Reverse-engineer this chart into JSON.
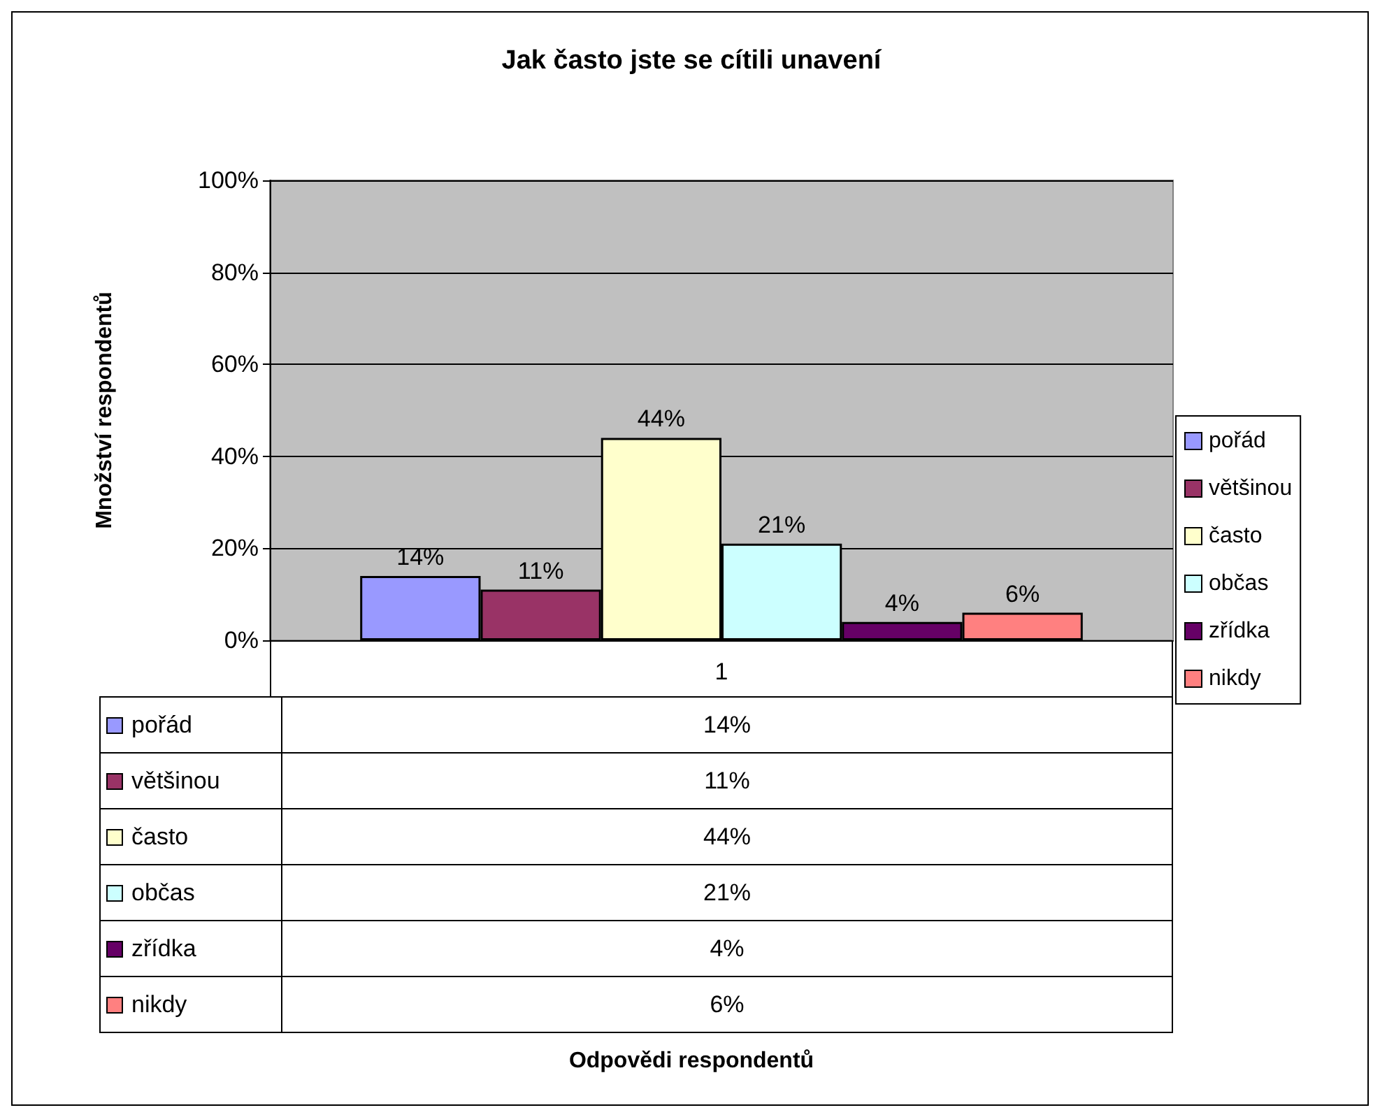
{
  "chart_data": {
    "type": "bar",
    "title": "Jak často jste se cítili unavení",
    "annotations": [
      "Odpovědi respondentů"
    ],
    "ylabel": "Množství respondentů",
    "categories": [
      "1"
    ],
    "series": [
      {
        "name": "pořád",
        "color": "#9999ff",
        "values": [
          14
        ],
        "value_labels": [
          "14%"
        ]
      },
      {
        "name": "většinou",
        "color": "#993366",
        "values": [
          11
        ],
        "value_labels": [
          "11%"
        ]
      },
      {
        "name": "často",
        "color": "#ffffcc",
        "values": [
          44
        ],
        "value_labels": [
          "44%"
        ]
      },
      {
        "name": "občas",
        "color": "#ccffff",
        "values": [
          21
        ],
        "value_labels": [
          "21%"
        ]
      },
      {
        "name": "zřídka",
        "color": "#660066",
        "values": [
          4
        ],
        "value_labels": [
          "4%"
        ]
      },
      {
        "name": "nikdy",
        "color": "#ff8080",
        "values": [
          6
        ],
        "value_labels": [
          "6%"
        ]
      }
    ],
    "ylim": [
      0,
      100
    ],
    "yticks": [
      {
        "value": 0,
        "label": "0%"
      },
      {
        "value": 20,
        "label": "20%"
      },
      {
        "value": 40,
        "label": "40%"
      },
      {
        "value": 60,
        "label": "60%"
      },
      {
        "value": 80,
        "label": "80%"
      },
      {
        "value": 100,
        "label": "100%"
      }
    ],
    "grid": "y",
    "legend": "right"
  }
}
